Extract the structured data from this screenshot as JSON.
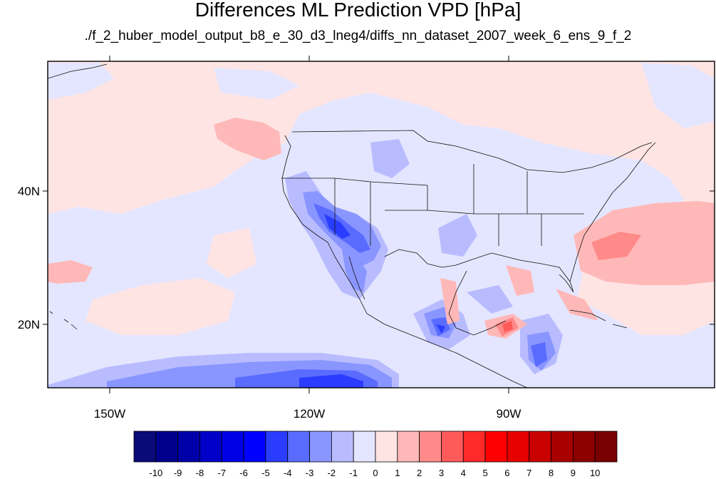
{
  "title": "Differences ML Prediction VPD [hPa]",
  "subtitle": "./f_2_huber_model_output_b8_e_30_d3_lneg4/diffs_nn_dataset_2007_week_6_ens_9_f_2",
  "map": {
    "lon_range": [
      -160,
      -63
    ],
    "lat_range": [
      10,
      59
    ],
    "x_ticks": [
      {
        "lon": -150,
        "label": "150W"
      },
      {
        "lon": -120,
        "label": "120W"
      },
      {
        "lon": -90,
        "label": "90W"
      }
    ],
    "y_ticks": [
      {
        "lat": 40,
        "label": "40N"
      },
      {
        "lat": 20,
        "label": "20N"
      }
    ]
  },
  "colorbar": {
    "levels": [
      "-10",
      "-9",
      "-8",
      "-7",
      "-6",
      "-5",
      "-4",
      "-3",
      "-2",
      "-1",
      "0",
      "1",
      "2",
      "3",
      "4",
      "5",
      "6",
      "7",
      "8",
      "9",
      "10"
    ],
    "colors": [
      "#0a0a78",
      "#00008c",
      "#0000a8",
      "#0000c8",
      "#0000e6",
      "#0000ff",
      "#2a3cff",
      "#5a6cff",
      "#8a96ff",
      "#b8bcff",
      "#e4e6ff",
      "#ffe4e4",
      "#ffb8b8",
      "#ff8a8a",
      "#ff5a5a",
      "#ff2a2a",
      "#ff0000",
      "#e60000",
      "#c80000",
      "#a80000",
      "#8c0000",
      "#780000"
    ]
  }
}
